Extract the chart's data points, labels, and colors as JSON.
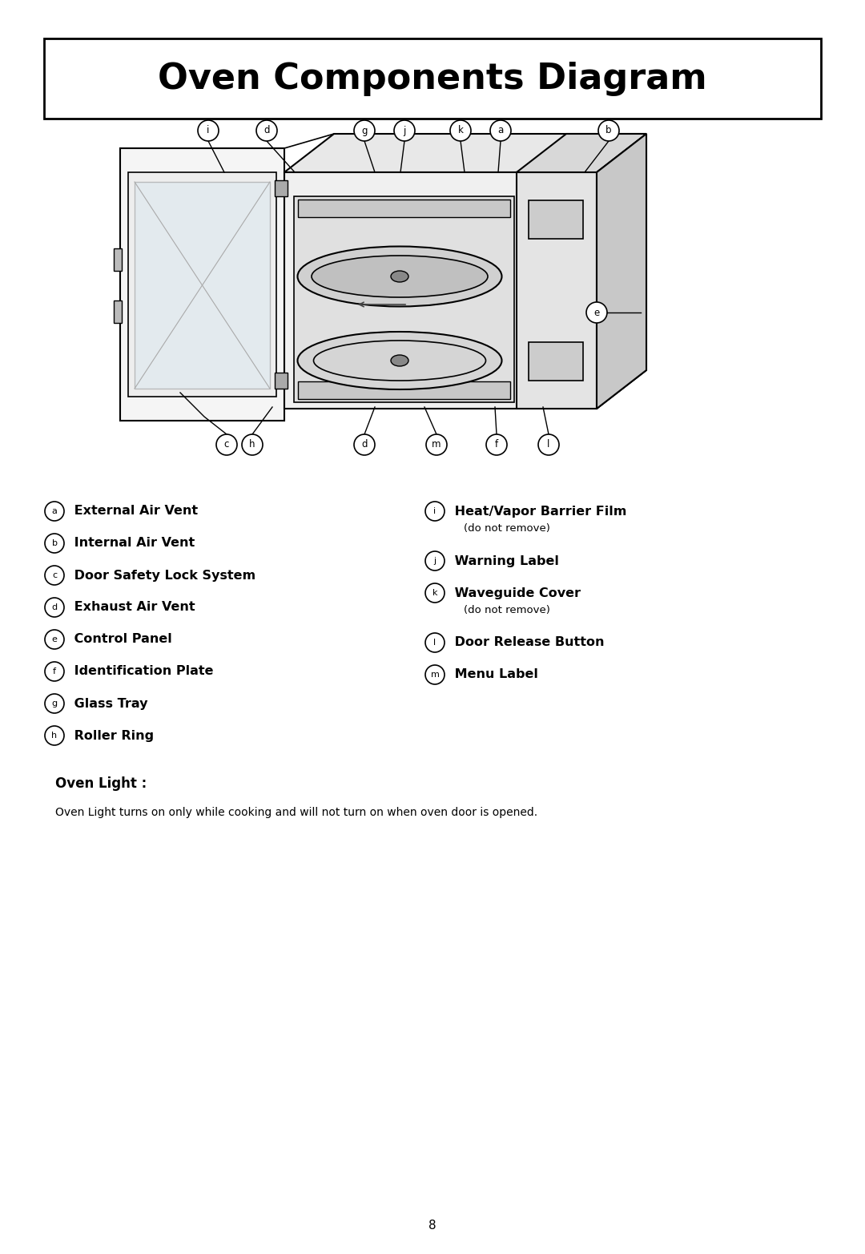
{
  "title": "Oven Components Diagram",
  "title_fontsize": 32,
  "background_color": "#ffffff",
  "page_number": "8",
  "left_labels": [
    {
      "letter": "a",
      "text": " External Air Vent"
    },
    {
      "letter": "b",
      "text": " Internal Air Vent"
    },
    {
      "letter": "c",
      "text": " Door Safety Lock System"
    },
    {
      "letter": "d",
      "text": " Exhaust Air Vent"
    },
    {
      "letter": "e",
      "text": " Control Panel"
    },
    {
      "letter": "f",
      "text": " Identification Plate"
    },
    {
      "letter": "g",
      "text": " Glass Tray"
    },
    {
      "letter": "h",
      "text": " Roller Ring"
    }
  ],
  "right_labels": [
    {
      "letter": "i",
      "text": " Heat/Vapor Barrier Film",
      "sub": "    (do not remove)"
    },
    {
      "letter": "j",
      "text": " Warning Label",
      "sub": null
    },
    {
      "letter": "k",
      "text": " Waveguide Cover",
      "sub": "    (do not remove)"
    },
    {
      "letter": "l",
      "text": " Door Release Button",
      "sub": null
    },
    {
      "letter": "m",
      "text": " Menu Label",
      "sub": null
    }
  ],
  "oven_light_title": "Oven Light :",
  "oven_light_text": "Oven Light turns on only while cooking and will not turn on when oven door is opened."
}
